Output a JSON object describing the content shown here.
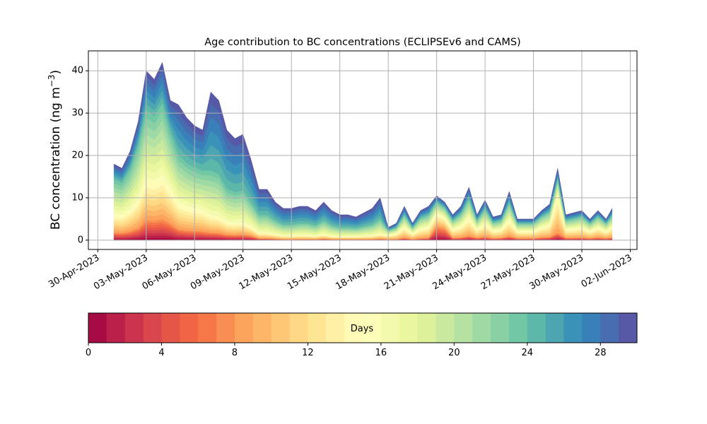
{
  "chart_data": {
    "type": "area",
    "stacked": true,
    "title": "Age contribution to BC concentrations (ECLIPSEv6 and CAMS)",
    "ylabel": "BC concentration (ng m",
    "ylabel_sup": "−3",
    "ylabel_close": ")",
    "xlabel": "",
    "ylim": [
      -2.2,
      44.7
    ],
    "xlim": [
      "2023-04-29T10:00",
      "2023-06-02T10:00"
    ],
    "yticks": [
      0,
      10,
      20,
      30,
      40
    ],
    "xticks": [
      "2023-04-30",
      "2023-05-03",
      "2023-05-06",
      "2023-05-09",
      "2023-05-12",
      "2023-05-15",
      "2023-05-18",
      "2023-05-21",
      "2023-05-24",
      "2023-05-27",
      "2023-05-30",
      "2023-06-02"
    ],
    "xtick_labels": [
      "30-Apr-2023",
      "03-May-2023",
      "06-May-2023",
      "09-May-2023",
      "12-May-2023",
      "15-May-2023",
      "18-May-2023",
      "21-May-2023",
      "24-May-2023",
      "27-May-2023",
      "30-May-2023",
      "02-Jun-2023"
    ],
    "grid": true,
    "x": [
      "2023-05-01T00",
      "2023-05-01T12",
      "2023-05-02T00",
      "2023-05-02T12",
      "2023-05-03T00",
      "2023-05-03T12",
      "2023-05-04T00",
      "2023-05-04T12",
      "2023-05-05T00",
      "2023-05-05T12",
      "2023-05-06T00",
      "2023-05-06T12",
      "2023-05-07T00",
      "2023-05-07T12",
      "2023-05-08T00",
      "2023-05-08T12",
      "2023-05-09T00",
      "2023-05-09T12",
      "2023-05-10T00",
      "2023-05-10T12",
      "2023-05-11T00",
      "2023-05-11T12",
      "2023-05-12T00",
      "2023-05-12T12",
      "2023-05-13T00",
      "2023-05-13T12",
      "2023-05-14T00",
      "2023-05-14T12",
      "2023-05-15T00",
      "2023-05-15T12",
      "2023-05-16T00",
      "2023-05-16T12",
      "2023-05-17T00",
      "2023-05-17T12",
      "2023-05-18T00",
      "2023-05-18T12",
      "2023-05-19T00",
      "2023-05-19T12",
      "2023-05-20T00",
      "2023-05-20T12",
      "2023-05-21T00",
      "2023-05-21T12",
      "2023-05-22T00",
      "2023-05-22T12",
      "2023-05-23T00",
      "2023-05-23T12",
      "2023-05-24T00",
      "2023-05-24T12",
      "2023-05-25T00",
      "2023-05-25T12",
      "2023-05-26T00",
      "2023-05-26T12",
      "2023-05-27T00",
      "2023-05-27T12",
      "2023-05-28T00",
      "2023-05-28T12",
      "2023-05-29T00",
      "2023-05-29T12",
      "2023-05-30T00",
      "2023-05-30T12",
      "2023-05-31T00",
      "2023-05-31T12",
      "2023-05-31T21"
    ],
    "series": [
      {
        "age_days": [
          0,
          8
        ],
        "values": [
          1.8,
          1.7,
          2.1,
          2.8,
          4.8,
          4.6,
          5.0,
          4.0,
          2.6,
          2.3,
          2.2,
          2.1,
          1.8,
          1.7,
          1.3,
          1.2,
          1.3,
          1.0,
          0.4,
          0.4,
          0.3,
          0.2,
          0.2,
          0.2,
          0.2,
          0.2,
          0.3,
          0.2,
          0.2,
          0.2,
          0.2,
          0.2,
          0.2,
          0.3,
          0.2,
          0.2,
          0.5,
          0.2,
          0.4,
          0.5,
          3.2,
          2.7,
          0.5,
          0.6,
          1.0,
          0.5,
          0.8,
          0.4,
          0.5,
          0.9,
          0.4,
          0.4,
          0.4,
          0.6,
          0.7,
          1.7,
          0.5,
          0.5,
          0.6,
          0.4,
          0.6,
          0.4,
          0.6
        ]
      },
      {
        "age_days": [
          8,
          16
        ],
        "values": [
          4.5,
          4.3,
          5.3,
          7.0,
          10,
          9.5,
          10.5,
          8.3,
          6.4,
          5.8,
          5.4,
          5.2,
          4.2,
          4.0,
          3.1,
          2.9,
          3.0,
          2.3,
          1.4,
          1.4,
          1.1,
          0.9,
          0.9,
          1.0,
          1.0,
          0.8,
          1.1,
          0.8,
          0.7,
          0.7,
          0.7,
          0.8,
          0.9,
          1.2,
          1.0,
          1.4,
          2.7,
          1.4,
          2.4,
          2.7,
          3.2,
          2.7,
          2.1,
          2.8,
          4.4,
          2.1,
          3.3,
          1.9,
          2.1,
          4.0,
          1.8,
          1.8,
          1.8,
          2.5,
          3.0,
          9.4,
          2.1,
          2.3,
          2.5,
          1.8,
          2.5,
          1.8,
          2.6
        ]
      },
      {
        "age_days": [
          16,
          24
        ],
        "values": [
          8.1,
          7.6,
          9.4,
          12.6,
          16,
          15.2,
          16.8,
          13.2,
          11.2,
          10.2,
          9.5,
          9.1,
          10.5,
          9.9,
          7.8,
          7.2,
          7.5,
          5.7,
          4.2,
          4.2,
          3.2,
          2.6,
          2.6,
          2.8,
          2.8,
          2.5,
          3.2,
          2.5,
          2.1,
          2.1,
          1.9,
          2.3,
          2.6,
          3.5,
          1.1,
          1.4,
          2.8,
          1.4,
          2.5,
          2.8,
          2.6,
          2.3,
          2.1,
          2.8,
          4.4,
          2.1,
          3.3,
          1.9,
          2.1,
          4.0,
          1.8,
          1.8,
          1.8,
          2.5,
          3.0,
          3.4,
          2.1,
          2.3,
          2.5,
          1.8,
          2.5,
          1.8,
          2.6
        ]
      },
      {
        "age_days": [
          24,
          30
        ],
        "values": [
          3.6,
          3.4,
          4.2,
          5.6,
          9.2,
          8.7,
          9.7,
          7.5,
          11.8,
          10.7,
          9.9,
          9.6,
          18.5,
          17.4,
          13.8,
          12.7,
          13.2,
          10.0,
          6.0,
          6.0,
          4.4,
          3.8,
          3.8,
          4.0,
          4.0,
          3.5,
          4.4,
          3.5,
          3.0,
          3.0,
          2.7,
          3.2,
          3.8,
          5.0,
          0.7,
          1.0,
          2.0,
          1.0,
          1.7,
          2.0,
          1.5,
          1.3,
          1.3,
          1.8,
          2.7,
          1.3,
          2.1,
          1.3,
          1.3,
          2.6,
          1.0,
          1.0,
          1.0,
          1.4,
          1.8,
          2.5,
          1.3,
          1.4,
          1.4,
          1.0,
          1.4,
          1.0,
          1.7
        ]
      }
    ],
    "colorbar": {
      "label": "Days",
      "colormap": "Spectral",
      "colormap_stops": [
        "#9e0142",
        "#d53e4f",
        "#f46d43",
        "#fdae61",
        "#fee08b",
        "#ffffbf",
        "#e6f598",
        "#abdda4",
        "#66c2a5",
        "#3288bd",
        "#5e4fa2"
      ],
      "range": [
        0,
        30
      ],
      "bins": 30,
      "ticks": [
        0,
        4,
        8,
        12,
        16,
        20,
        24,
        28
      ],
      "orientation": "horizontal",
      "placement": "bottom"
    }
  }
}
